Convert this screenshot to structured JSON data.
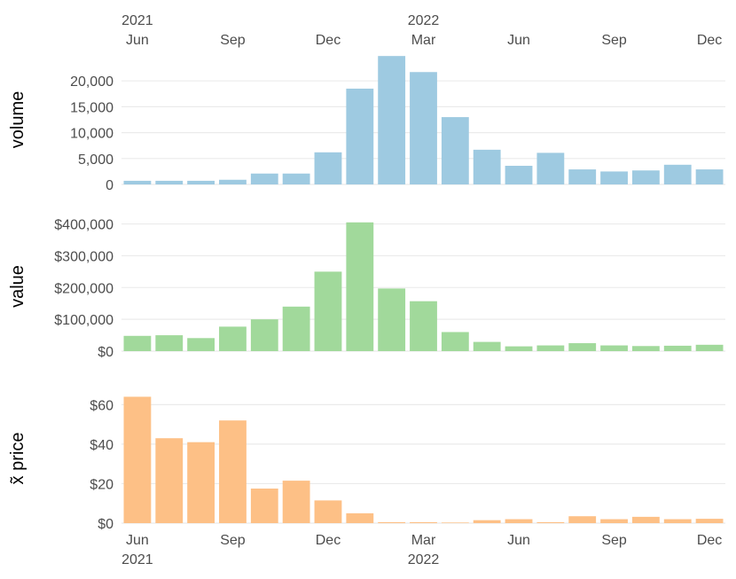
{
  "chart_data": [
    {
      "type": "bar",
      "ylabel": "volume",
      "color": "#9ecae1",
      "categories": [
        "2021-06",
        "2021-07",
        "2021-08",
        "2021-09",
        "2021-10",
        "2021-11",
        "2021-12",
        "2022-01",
        "2022-02",
        "2022-03",
        "2022-04",
        "2022-05",
        "2022-06",
        "2022-07",
        "2022-08",
        "2022-09",
        "2022-10",
        "2022-11",
        "2022-12"
      ],
      "values": [
        700,
        700,
        700,
        900,
        2100,
        2100,
        6200,
        18500,
        24800,
        21700,
        13000,
        6700,
        3600,
        6100,
        2900,
        2500,
        2700,
        3800,
        2900
      ],
      "ylim": [
        0,
        25000
      ],
      "yticks": [
        0,
        5000,
        10000,
        15000,
        20000
      ],
      "ytick_labels": [
        "0",
        "5,000",
        "10,000",
        "15,000",
        "20,000"
      ],
      "x_axis_position": "top"
    },
    {
      "type": "bar",
      "ylabel": "value",
      "color": "#a1d99b",
      "categories": [
        "2021-06",
        "2021-07",
        "2021-08",
        "2021-09",
        "2021-10",
        "2021-11",
        "2021-12",
        "2022-01",
        "2022-02",
        "2022-03",
        "2022-04",
        "2022-05",
        "2022-06",
        "2022-07",
        "2022-08",
        "2022-09",
        "2022-10",
        "2022-11",
        "2022-12"
      ],
      "values": [
        48000,
        50000,
        41000,
        77000,
        100000,
        140000,
        250000,
        405000,
        197000,
        157000,
        60000,
        29000,
        15000,
        18000,
        25000,
        18000,
        16000,
        17000,
        20000
      ],
      "ylim": [
        0,
        410000
      ],
      "yticks": [
        0,
        100000,
        200000,
        300000,
        400000
      ],
      "ytick_labels": [
        "$0",
        "$100,000",
        "$200,000",
        "$300,000",
        "$400,000"
      ]
    },
    {
      "type": "bar",
      "ylabel": "x̃ price",
      "color": "#fdc086",
      "categories": [
        "2021-06",
        "2021-07",
        "2021-08",
        "2021-09",
        "2021-10",
        "2021-11",
        "2021-12",
        "2022-01",
        "2022-02",
        "2022-03",
        "2022-04",
        "2022-05",
        "2022-06",
        "2022-07",
        "2022-08",
        "2022-09",
        "2022-10",
        "2022-11",
        "2022-12"
      ],
      "values": [
        64,
        43,
        41,
        52,
        17.5,
        21.5,
        11.5,
        5,
        0.5,
        0.5,
        0.3,
        1.5,
        2,
        0.5,
        3.5,
        2,
        3.2,
        2,
        2.2
      ],
      "ylim": [
        0,
        66
      ],
      "yticks": [
        0,
        20,
        40,
        60
      ],
      "ytick_labels": [
        "$0",
        "$20",
        "$40",
        "$60"
      ],
      "x_axis_position": "bottom"
    }
  ],
  "x_axis": {
    "tick_labels": [
      "Jun",
      "Sep",
      "Dec",
      "Mar",
      "Jun",
      "Sep",
      "Dec"
    ],
    "tick_months": [
      "2021-06",
      "2021-09",
      "2021-12",
      "2022-03",
      "2022-06",
      "2022-09",
      "2022-12"
    ],
    "year_labels": [
      "2021",
      "2022"
    ],
    "year_months": [
      "2021-06",
      "2022-03"
    ]
  }
}
